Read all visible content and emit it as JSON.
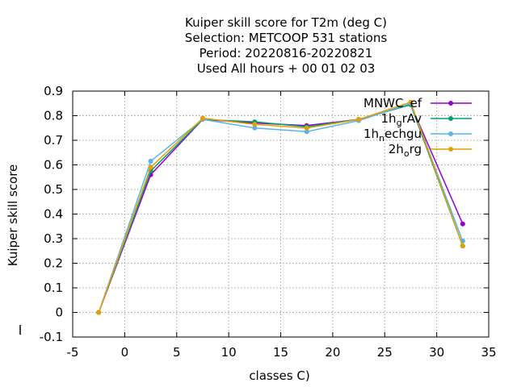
{
  "chart_data": {
    "type": "line",
    "title_lines": [
      "Kuiper skill score  for T2m (deg C)",
      "Selection: METCOOP    531 stations",
      "Period: 20220816-20220821",
      "Used  All hours + 00 01 02 03"
    ],
    "xlabel": "classes C)",
    "ylabel": "Kuiper skill score",
    "xlim": [
      -5,
      35
    ],
    "ylim": [
      -0.1,
      0.9
    ],
    "xticks": [
      -5,
      0,
      5,
      10,
      15,
      20,
      25,
      30,
      35
    ],
    "xtick_labels": [
      "-5",
      "0",
      "5",
      "10",
      "15",
      "20",
      "25",
      "30",
      "35"
    ],
    "yticks": [
      -0.1,
      0,
      0.1,
      0.2,
      0.3,
      0.4,
      0.5,
      0.6,
      0.7,
      0.8,
      0.9
    ],
    "ytick_labels": [
      "-0.1",
      "0",
      "0.1",
      "0.2",
      "0.3",
      "0.4",
      "0.5",
      "0.6",
      "0.7",
      "0.8",
      "0.9"
    ],
    "grid": true,
    "legend_position": "top-right",
    "x": [
      -2.5,
      2.5,
      7.5,
      12.5,
      17.5,
      22.5,
      27.5,
      32.5
    ],
    "series": [
      {
        "name": "MNWC_ref",
        "legend_text": "MNWC_ref",
        "legend_sub": "",
        "legend_prefix": "MNWC",
        "legend_suffix": "ef",
        "color": "#9400d3",
        "values": [
          0.0,
          0.56,
          0.785,
          0.77,
          0.76,
          0.785,
          0.845,
          0.36
        ]
      },
      {
        "name": "1h_grAv",
        "legend_prefix": "1h",
        "legend_sub": "g",
        "legend_suffix": "rAv",
        "color": "#009e73",
        "values": [
          0.0,
          0.575,
          0.785,
          0.775,
          0.755,
          0.785,
          0.845,
          0.27
        ]
      },
      {
        "name": "1h_nechgu",
        "legend_prefix": "1h",
        "legend_sub": "n",
        "legend_suffix": "echgu",
        "color": "#56b4e9",
        "values": [
          0.0,
          0.615,
          0.785,
          0.75,
          0.735,
          0.78,
          0.85,
          0.29
        ]
      },
      {
        "name": "2h_org",
        "legend_prefix": "2h",
        "legend_sub": "o",
        "legend_suffix": "rg",
        "color": "#e69f00",
        "values": [
          0.0,
          0.59,
          0.79,
          0.765,
          0.75,
          0.785,
          0.855,
          0.27
        ]
      }
    ]
  }
}
